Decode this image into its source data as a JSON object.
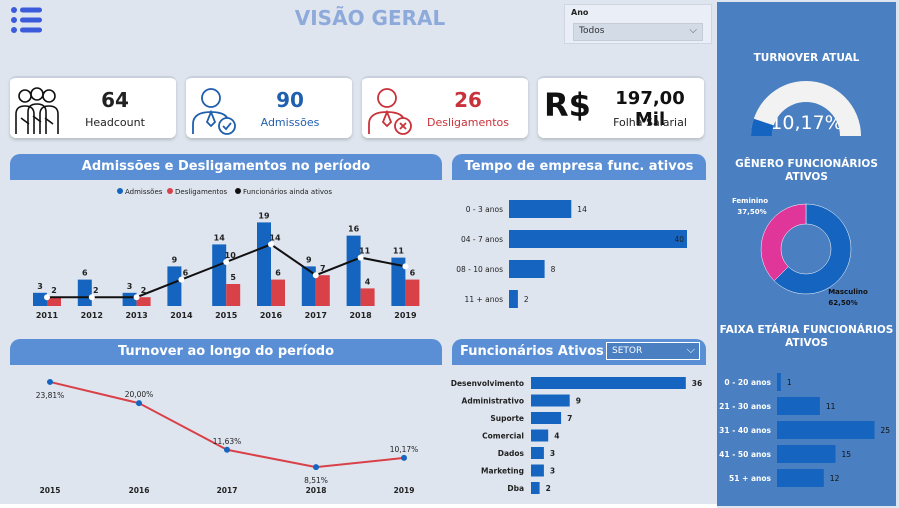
{
  "page_title": "VISÃO GERAL",
  "filter": {
    "label": "Ano",
    "value": "Todos"
  },
  "kpis": [
    {
      "value": "64",
      "label": "Headcount",
      "color": "#222222"
    },
    {
      "value": "90",
      "label": "Admissões",
      "color": "#1f5fae"
    },
    {
      "value": "26",
      "label": "Desligamentos",
      "color": "#c9323a"
    },
    {
      "value": "197,00 Mil",
      "label": "Folha Salarial",
      "color": "#111111",
      "prefix": "R$"
    }
  ],
  "colors": {
    "blue": "#1565c0",
    "red": "#d94148",
    "line": "#111111",
    "header": "#5a8fd6",
    "side": "#4a7fc1",
    "pink": "#e0369a"
  },
  "sections": {
    "adm_title": "Admissões e Desligamentos no período",
    "tempo_title": "Tempo de empresa func. ativos",
    "turnover_title": "Turnover ao longo do período",
    "setor_title": "Funcionários Ativos por",
    "setor_select": "SETOR"
  },
  "side": {
    "turnover_title": "TURNOVER ATUAL",
    "turnover_value": "10,17%",
    "turnover_fraction": 0.1017,
    "genero_title_1": "GÊNERO FUNCIONÁRIOS",
    "genero_title_2": "ATIVOS",
    "faixa_title_1": "FAIXA ETÁRIA FUNCIONÁRIOS",
    "faixa_title_2": "ATIVOS"
  },
  "chart_data": [
    {
      "type": "bar",
      "legend": [
        "Admissões",
        "Desligamentos",
        "Funcionários ainda ativos"
      ],
      "categories": [
        "2011",
        "2012",
        "2013",
        "2014",
        "2015",
        "2016",
        "2017",
        "2018",
        "2019"
      ],
      "series": [
        {
          "name": "Admissões",
          "values": [
            3,
            6,
            3,
            9,
            14,
            19,
            9,
            16,
            11
          ]
        },
        {
          "name": "Desligamentos",
          "values": [
            2,
            0,
            2,
            0,
            5,
            6,
            7,
            4,
            6
          ]
        },
        {
          "name": "Funcionários ainda ativos",
          "values": [
            2,
            2,
            2,
            6,
            10,
            14,
            7,
            11,
            9
          ]
        }
      ],
      "line_labels": [
        "",
        "2",
        "",
        "6",
        "10",
        "14",
        "",
        "11",
        ""
      ]
    },
    {
      "type": "bar",
      "orientation": "horizontal",
      "categories": [
        "0 - 3 anos",
        "04 - 7 anos",
        "08 - 10 anos",
        "11 + anos"
      ],
      "values": [
        14,
        40,
        8,
        2
      ]
    },
    {
      "type": "line",
      "x": [
        "2015",
        "2016",
        "2017",
        "2018",
        "2019"
      ],
      "values": [
        23.81,
        20.0,
        11.63,
        8.51,
        10.17
      ],
      "labels": [
        "23,81%",
        "20,00%",
        "11,63%",
        "8,51%",
        "10,17%"
      ]
    },
    {
      "type": "bar",
      "orientation": "horizontal",
      "categories": [
        "Desenvolvimento",
        "Administrativo",
        "Suporte",
        "Comercial",
        "Dados",
        "Marketing",
        "Dba"
      ],
      "values": [
        36,
        9,
        7,
        4,
        3,
        3,
        2
      ]
    },
    {
      "type": "pie",
      "categories": [
        "Feminino",
        "Masculino"
      ],
      "values": [
        37.5,
        62.5
      ],
      "labels": [
        "37,50%",
        "62,50%"
      ]
    },
    {
      "type": "bar",
      "orientation": "horizontal",
      "categories": [
        "0 - 20 anos",
        "21 - 30 anos",
        "31 - 40 anos",
        "41 - 50 anos",
        "51 + anos"
      ],
      "values": [
        1,
        11,
        25,
        15,
        12
      ]
    }
  ]
}
